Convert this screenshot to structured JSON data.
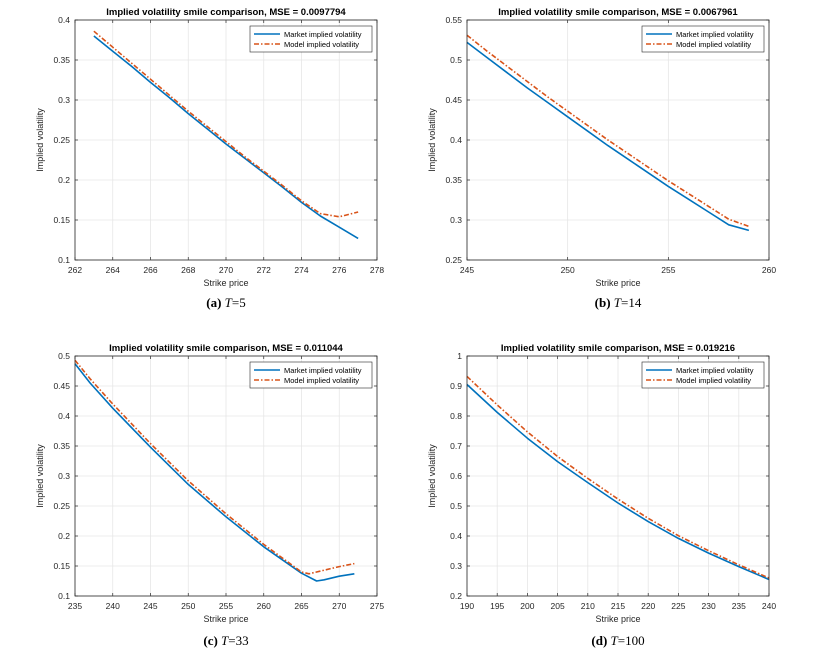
{
  "chart_data": [
    {
      "type": "line",
      "title": "Implied volatility smile comparison, MSE = 0.0097794",
      "xlabel": "Strike price",
      "ylabel": "Implied volatility",
      "xlim": [
        262,
        278
      ],
      "ylim": [
        0.1,
        0.4
      ],
      "xticks": [
        262,
        264,
        266,
        268,
        270,
        272,
        274,
        276,
        278
      ],
      "yticks": [
        0.1,
        0.15,
        0.2,
        0.25,
        0.3,
        0.35,
        0.4
      ],
      "grid": true,
      "legend_position": "top-right",
      "caption": {
        "label": "(a)",
        "var": "T",
        "eq": "=5"
      },
      "series": [
        {
          "name": "Market implied volatility",
          "color": "#0072BD",
          "style": "solid",
          "x": [
            263,
            264,
            265,
            266,
            267,
            268,
            269,
            270,
            271,
            272,
            273,
            274,
            275,
            276,
            277
          ],
          "y": [
            0.38,
            0.361,
            0.342,
            0.322,
            0.303,
            0.283,
            0.264,
            0.245,
            0.227,
            0.209,
            0.191,
            0.172,
            0.155,
            0.141,
            0.127
          ]
        },
        {
          "name": "Model implied volatility",
          "color": "#D95319",
          "style": "dashdot",
          "x": [
            263,
            264,
            265,
            266,
            267,
            268,
            269,
            270,
            271,
            272,
            273,
            274,
            275,
            276,
            277
          ],
          "y": [
            0.386,
            0.366,
            0.346,
            0.326,
            0.306,
            0.286,
            0.267,
            0.248,
            0.229,
            0.211,
            0.193,
            0.174,
            0.158,
            0.154,
            0.16
          ]
        }
      ]
    },
    {
      "type": "line",
      "title": "Implied volatility smile comparison, MSE = 0.0067961",
      "xlabel": "Strike price",
      "ylabel": "Implied volatility",
      "xlim": [
        245,
        260
      ],
      "ylim": [
        0.25,
        0.55
      ],
      "xticks": [
        245,
        250,
        255,
        260
      ],
      "yticks": [
        0.25,
        0.3,
        0.35,
        0.4,
        0.45,
        0.5,
        0.55
      ],
      "grid": true,
      "legend_position": "top-right",
      "caption": {
        "label": "(b)",
        "var": "T",
        "eq": "=14"
      },
      "series": [
        {
          "name": "Market implied volatility",
          "color": "#0072BD",
          "style": "solid",
          "x": [
            245,
            246,
            247,
            248,
            249,
            250,
            251,
            252,
            253,
            254,
            255,
            256,
            257,
            258,
            259
          ],
          "y": [
            0.522,
            0.503,
            0.484,
            0.465,
            0.447,
            0.429,
            0.411,
            0.393,
            0.376,
            0.359,
            0.342,
            0.326,
            0.31,
            0.294,
            0.287
          ]
        },
        {
          "name": "Model implied volatility",
          "color": "#D95319",
          "style": "dashdot",
          "x": [
            245,
            246,
            247,
            248,
            249,
            250,
            251,
            252,
            253,
            254,
            255,
            256,
            257,
            258,
            259
          ],
          "y": [
            0.531,
            0.511,
            0.492,
            0.473,
            0.454,
            0.436,
            0.418,
            0.4,
            0.383,
            0.366,
            0.349,
            0.333,
            0.317,
            0.301,
            0.292
          ]
        }
      ]
    },
    {
      "type": "line",
      "title": "Implied volatility smile comparison, MSE = 0.011044",
      "xlabel": "Strike price",
      "ylabel": "Implied volatility",
      "xlim": [
        235,
        275
      ],
      "ylim": [
        0.1,
        0.5
      ],
      "xticks": [
        235,
        240,
        245,
        250,
        255,
        260,
        265,
        270,
        275
      ],
      "yticks": [
        0.1,
        0.15,
        0.2,
        0.25,
        0.3,
        0.35,
        0.4,
        0.45,
        0.5
      ],
      "grid": true,
      "legend_position": "top-right",
      "caption": {
        "label": "(c)",
        "var": "T",
        "eq": "=33"
      },
      "series": [
        {
          "name": "Market implied volatility",
          "color": "#0072BD",
          "style": "solid",
          "x": [
            235,
            237,
            240,
            245,
            250,
            255,
            260,
            265,
            267,
            268,
            270,
            272
          ],
          "y": [
            0.487,
            0.455,
            0.413,
            0.348,
            0.286,
            0.232,
            0.182,
            0.138,
            0.125,
            0.127,
            0.133,
            0.137
          ]
        },
        {
          "name": "Model implied volatility",
          "color": "#D95319",
          "style": "dashdot",
          "x": [
            235,
            237,
            240,
            245,
            250,
            255,
            260,
            265,
            266,
            268,
            270,
            272
          ],
          "y": [
            0.493,
            0.462,
            0.42,
            0.354,
            0.292,
            0.237,
            0.186,
            0.14,
            0.137,
            0.143,
            0.149,
            0.154
          ]
        }
      ]
    },
    {
      "type": "line",
      "title": "Implied volatility smile comparison, MSE = 0.019216",
      "xlabel": "Strike price",
      "ylabel": "Implied volatility",
      "xlim": [
        190,
        240
      ],
      "ylim": [
        0.2,
        1.0
      ],
      "xticks": [
        190,
        195,
        200,
        205,
        210,
        215,
        220,
        225,
        230,
        235,
        240
      ],
      "yticks": [
        0.2,
        0.3,
        0.4,
        0.5,
        0.6,
        0.7,
        0.8,
        0.9,
        1
      ],
      "grid": true,
      "legend_position": "top-right",
      "caption": {
        "label": "(d)",
        "var": "T",
        "eq": "=100"
      },
      "series": [
        {
          "name": "Market implied volatility",
          "color": "#0072BD",
          "style": "solid",
          "x": [
            190,
            195,
            200,
            205,
            210,
            215,
            220,
            225,
            230,
            235,
            240
          ],
          "y": [
            0.905,
            0.812,
            0.726,
            0.648,
            0.578,
            0.51,
            0.448,
            0.392,
            0.343,
            0.298,
            0.255
          ]
        },
        {
          "name": "Model implied volatility",
          "color": "#D95319",
          "style": "dashdot",
          "x": [
            190,
            195,
            200,
            205,
            210,
            215,
            220,
            225,
            230,
            235,
            240
          ],
          "y": [
            0.932,
            0.837,
            0.747,
            0.665,
            0.592,
            0.523,
            0.459,
            0.401,
            0.351,
            0.304,
            0.26
          ]
        }
      ]
    }
  ]
}
